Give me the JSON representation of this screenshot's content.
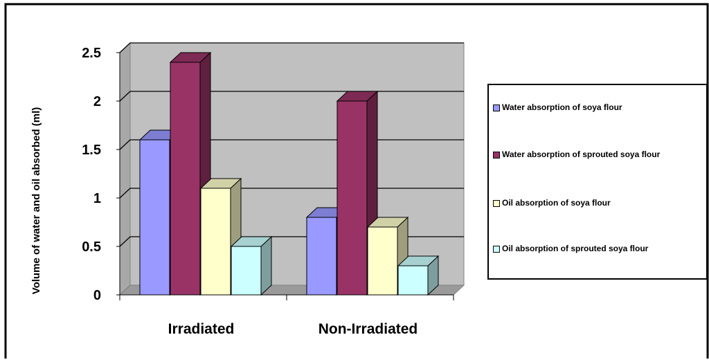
{
  "chart_data": {
    "type": "bar",
    "style": "3d-clustered-column",
    "title": "",
    "xlabel": "",
    "ylabel": "Volume of water and oil absorbed (ml)",
    "categories": [
      "Irradiated",
      "Non-Irradiated"
    ],
    "ylim": [
      0,
      2.5
    ],
    "yticks": [
      "0",
      "0.5",
      "1",
      "1.5",
      "2",
      "2.5"
    ],
    "grid": true,
    "legend_position": "right",
    "series": [
      {
        "name": "Water absorption of soya flour",
        "values": [
          1.6,
          0.8
        ],
        "color": "#9999FF"
      },
      {
        "name": "Water absorption of sprouted soya flour",
        "values": [
          2.4,
          2.0
        ],
        "color": "#993366"
      },
      {
        "name": "Oil absorption of soya flour",
        "values": [
          1.1,
          0.7
        ],
        "color": "#FFFFCC"
      },
      {
        "name": "Oil absorption of sprouted soya flour",
        "values": [
          0.5,
          0.3
        ],
        "color": "#CCFFFF"
      }
    ]
  }
}
